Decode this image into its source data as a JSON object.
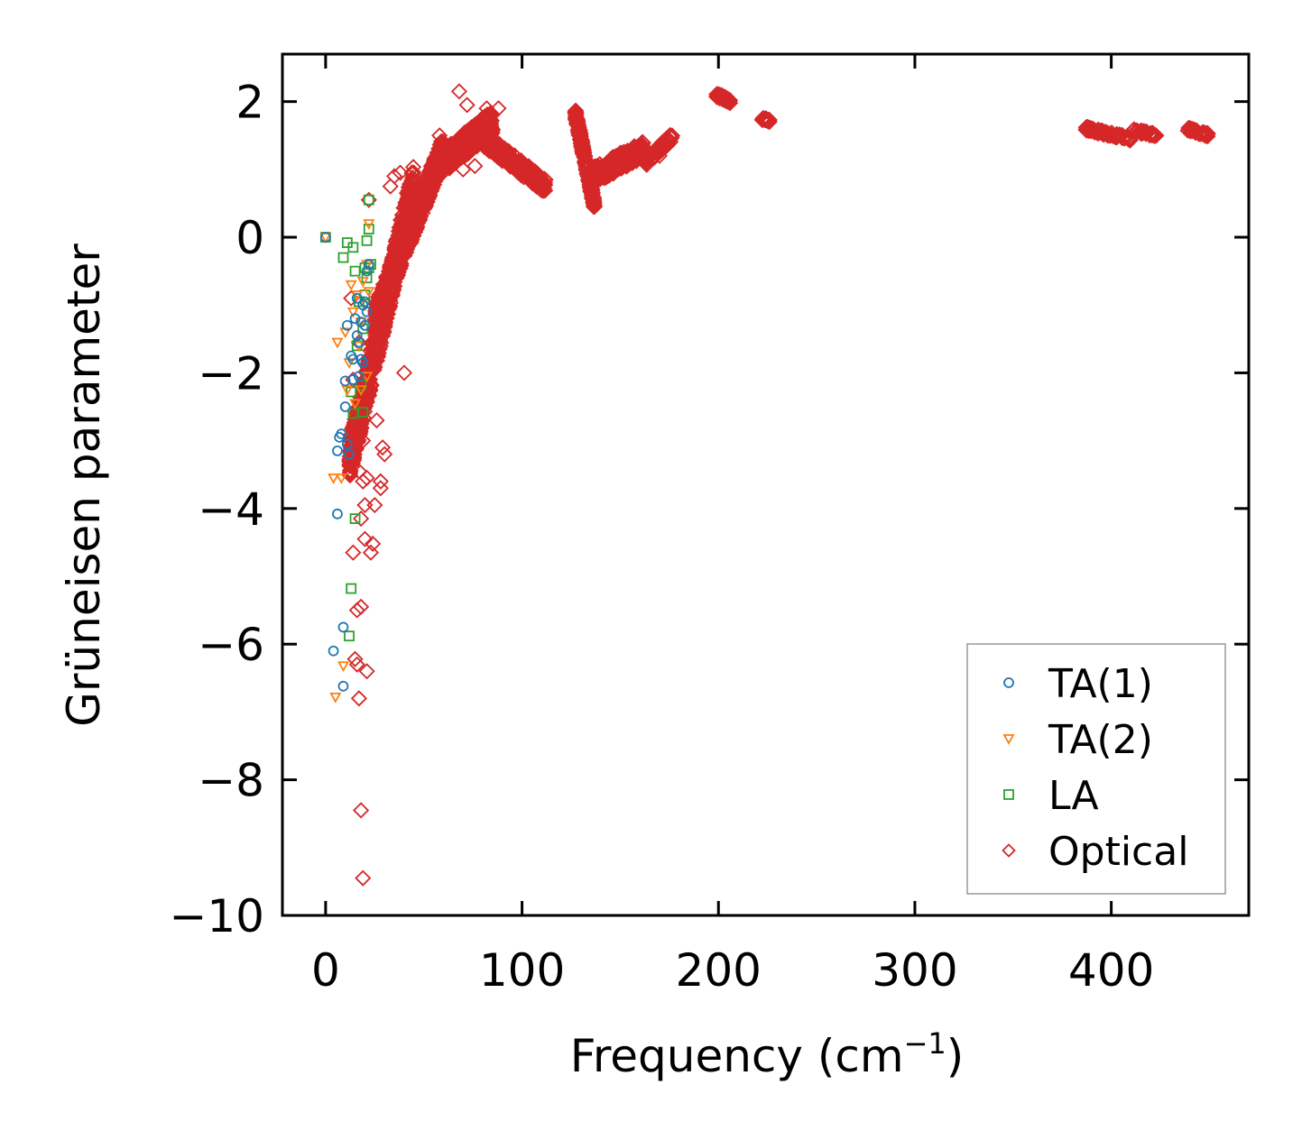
{
  "chart_data": {
    "type": "scatter",
    "title": "",
    "xlabel": "Frequency (cm",
    "xlabel_sup": "−1",
    "xlabel_close": ")",
    "ylabel": "Grüneisen parameter",
    "xlim": [
      -22,
      470
    ],
    "ylim": [
      -10,
      2.7
    ],
    "xticks": [
      0,
      100,
      200,
      300,
      400
    ],
    "xtick_labels": [
      "0",
      "100",
      "200",
      "300",
      "400"
    ],
    "yticks": [
      2,
      0,
      -2,
      -4,
      -6,
      -8,
      -10
    ],
    "ytick_labels": [
      "2",
      "0",
      "−2",
      "−4",
      "−6",
      "−8",
      "−10"
    ],
    "legend_position": "lower-right",
    "series": [
      {
        "name": "TA(1)",
        "marker": "circle",
        "color": "#1f77b4",
        "points": [
          [
            0,
            0
          ],
          [
            4,
            -6.1
          ],
          [
            6,
            -4.08
          ],
          [
            6,
            -3.15
          ],
          [
            7,
            -2.95
          ],
          [
            8,
            -2.9
          ],
          [
            9,
            -6.62
          ],
          [
            9,
            -5.75
          ],
          [
            10,
            -2.12
          ],
          [
            10,
            -2.5
          ],
          [
            11,
            -3.05
          ],
          [
            11,
            -1.3
          ],
          [
            12,
            -3.2
          ],
          [
            13,
            -1.75
          ],
          [
            14,
            -1.8
          ],
          [
            14,
            -2.1
          ],
          [
            15,
            -1.2
          ],
          [
            16,
            -1.45
          ],
          [
            16,
            -0.9
          ],
          [
            17,
            -2.05
          ],
          [
            17,
            -1.55
          ],
          [
            18,
            -1.8
          ],
          [
            18,
            -1.25
          ],
          [
            19,
            -1.0
          ],
          [
            19,
            -1.85
          ],
          [
            20,
            -1.3
          ],
          [
            20,
            -0.95
          ],
          [
            21,
            -1.1
          ],
          [
            21,
            -0.5
          ],
          [
            22,
            -0.4
          ]
        ]
      },
      {
        "name": "TA(2)",
        "marker": "triangle-down",
        "color": "#ff7f0e",
        "points": [
          [
            0,
            0
          ],
          [
            4,
            -3.55
          ],
          [
            5,
            -6.78
          ],
          [
            6,
            -1.55
          ],
          [
            8,
            -3.55
          ],
          [
            9,
            -6.32
          ],
          [
            10,
            -1.4
          ],
          [
            11,
            -2.25
          ],
          [
            12,
            -1.85
          ],
          [
            13,
            -0.7
          ],
          [
            14,
            -1.1
          ],
          [
            15,
            -2.45
          ],
          [
            16,
            -0.85
          ],
          [
            17,
            -1.6
          ],
          [
            18,
            -2.25
          ],
          [
            18,
            -1.25
          ],
          [
            19,
            -0.65
          ],
          [
            20,
            -1.0
          ],
          [
            21,
            -0.4
          ],
          [
            22,
            -0.8
          ],
          [
            22,
            0.2
          ],
          [
            21,
            -2.05
          ]
        ]
      },
      {
        "name": "LA",
        "marker": "square",
        "color": "#2ca02c",
        "points": [
          [
            0,
            0
          ],
          [
            9,
            -0.3
          ],
          [
            11,
            -0.08
          ],
          [
            12,
            -5.88
          ],
          [
            13,
            -5.18
          ],
          [
            13,
            -2.28
          ],
          [
            14,
            -2.6
          ],
          [
            14,
            -0.15
          ],
          [
            15,
            -4.15
          ],
          [
            15,
            -0.5
          ],
          [
            16,
            -1.6
          ],
          [
            17,
            -0.95
          ],
          [
            18,
            -2.18
          ],
          [
            19,
            -2.58
          ],
          [
            19,
            -1.35
          ],
          [
            20,
            -0.85
          ],
          [
            20,
            -0.45
          ],
          [
            21,
            -0.6
          ],
          [
            21,
            -0.05
          ],
          [
            22,
            0.12
          ],
          [
            22,
            0.55
          ],
          [
            22,
            -0.45
          ],
          [
            23,
            -0.4
          ]
        ]
      },
      {
        "name": "Optical",
        "marker": "diamond",
        "color": "#d62728",
        "clusters": [
          {
            "x": [
              12,
              45
            ],
            "y0": -3.3,
            "y1": 0.8,
            "n": 700,
            "spread": 0.6
          },
          {
            "x": [
              25,
              60
            ],
            "y0": -1.2,
            "y1": 1.3,
            "n": 600,
            "spread": 0.4
          },
          {
            "x": [
              55,
              85
            ],
            "y0": 1.0,
            "y1": 1.7,
            "n": 500,
            "spread": 0.35
          },
          {
            "x": [
              80,
              112
            ],
            "y0": 1.45,
            "y1": 0.75,
            "n": 320,
            "spread": 0.22
          },
          {
            "x": [
              127,
              137
            ],
            "y0": 1.85,
            "y1": 0.45,
            "n": 220,
            "spread": 0.15
          },
          {
            "x": [
              136,
              162
            ],
            "y0": 0.9,
            "y1": 1.3,
            "n": 220,
            "spread": 0.25
          },
          {
            "x": [
              163,
              177
            ],
            "y0": 1.1,
            "y1": 1.5,
            "n": 70,
            "spread": 0.12
          },
          {
            "x": [
              199,
              206
            ],
            "y0": 2.1,
            "y1": 2.0,
            "n": 50,
            "spread": 0.06
          },
          {
            "x": [
              222,
              226
            ],
            "y0": 1.75,
            "y1": 1.72,
            "n": 20,
            "spread": 0.04
          },
          {
            "x": [
              387,
              410
            ],
            "y0": 1.6,
            "y1": 1.45,
            "n": 90,
            "spread": 0.06
          },
          {
            "x": [
              411,
              423
            ],
            "y0": 1.58,
            "y1": 1.5,
            "n": 50,
            "spread": 0.05
          },
          {
            "x": [
              438,
              450
            ],
            "y0": 1.6,
            "y1": 1.5,
            "n": 50,
            "spread": 0.05
          }
        ],
        "points": [
          [
            13,
            -0.9
          ],
          [
            14,
            -2.1
          ],
          [
            14,
            -4.65
          ],
          [
            15,
            -2.95
          ],
          [
            15,
            -6.22
          ],
          [
            16,
            -6.3
          ],
          [
            16,
            -5.5
          ],
          [
            17,
            -6.8
          ],
          [
            17,
            -3.45
          ],
          [
            17,
            -1.55
          ],
          [
            18,
            -8.45
          ],
          [
            18,
            -5.45
          ],
          [
            18,
            -4.15
          ],
          [
            19,
            -9.45
          ],
          [
            19,
            -3.6
          ],
          [
            19,
            -3.0
          ],
          [
            20,
            -3.95
          ],
          [
            20,
            -4.45
          ],
          [
            21,
            -6.4
          ],
          [
            21,
            -3.55
          ],
          [
            22,
            0.55
          ],
          [
            22,
            -2.1
          ],
          [
            23,
            -4.65
          ],
          [
            24,
            -4.52
          ],
          [
            25,
            -3.95
          ],
          [
            26,
            -2.7
          ],
          [
            28,
            -3.7
          ],
          [
            28,
            -3.6
          ],
          [
            29,
            -3.1
          ],
          [
            30,
            -3.2
          ],
          [
            33,
            0.75
          ],
          [
            35,
            0.9
          ],
          [
            38,
            0.95
          ],
          [
            40,
            -2.0
          ],
          [
            58,
            1.5
          ],
          [
            65,
            1.35
          ],
          [
            68,
            2.15
          ],
          [
            70,
            1.0
          ],
          [
            72,
            1.95
          ],
          [
            76,
            1.05
          ],
          [
            82,
            1.9
          ],
          [
            88,
            1.9
          ],
          [
            170,
            1.2
          ]
        ]
      }
    ]
  }
}
